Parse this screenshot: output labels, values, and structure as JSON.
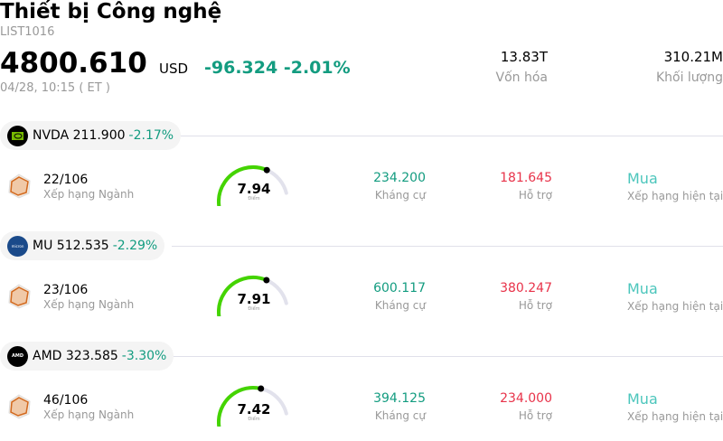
{
  "header": {
    "title": "Thiết bị Công nghệ",
    "code": "LIST1016",
    "price": "4800.610",
    "currency": "USD",
    "change": "-96.324",
    "change_pct": "-2.01%",
    "time": "04/28, 10:15 ( ET )"
  },
  "stats": [
    {
      "value": "13.83T",
      "label": "Vốn hóa"
    },
    {
      "value": "310.21M",
      "label": "Khối lượng"
    }
  ],
  "colors": {
    "negative": "#139c80",
    "support": "#e8334a",
    "buy": "#4cc6bc",
    "gauge": "#44d400"
  },
  "stocks": [
    {
      "ticker": "NVDA",
      "price": "211.900",
      "change": "-2.17%",
      "rank": "22/106",
      "rank_label": "Xếp hạng Ngành",
      "score": "7.94",
      "score_value": 7.94,
      "score_label": "Điểm",
      "resistance": "234.200",
      "resistance_label": "Kháng cự",
      "support": "181.645",
      "support_label": "Hỗ trợ",
      "rating": "Mua",
      "rating_label": "Xếp hạng hiện tại",
      "logo_icon": "nvidia-logo"
    },
    {
      "ticker": "MU",
      "price": "512.535",
      "change": "-2.29%",
      "rank": "23/106",
      "rank_label": "Xếp hạng Ngành",
      "score": "7.91",
      "score_value": 7.91,
      "score_label": "Điểm",
      "resistance": "600.117",
      "resistance_label": "Kháng cự",
      "support": "380.247",
      "support_label": "Hỗ trợ",
      "rating": "Mua",
      "rating_label": "Xếp hạng hiện tại",
      "logo_icon": "micron-logo"
    },
    {
      "ticker": "AMD",
      "price": "323.585",
      "change": "-3.30%",
      "rank": "46/106",
      "rank_label": "Xếp hạng Ngành",
      "score": "7.42",
      "score_value": 7.42,
      "score_label": "Điểm",
      "resistance": "394.125",
      "resistance_label": "Kháng cự",
      "support": "234.000",
      "support_label": "Hỗ trợ",
      "rating": "Mua",
      "rating_label": "Xếp hạng hiện tại",
      "logo_icon": "amd-logo"
    }
  ]
}
